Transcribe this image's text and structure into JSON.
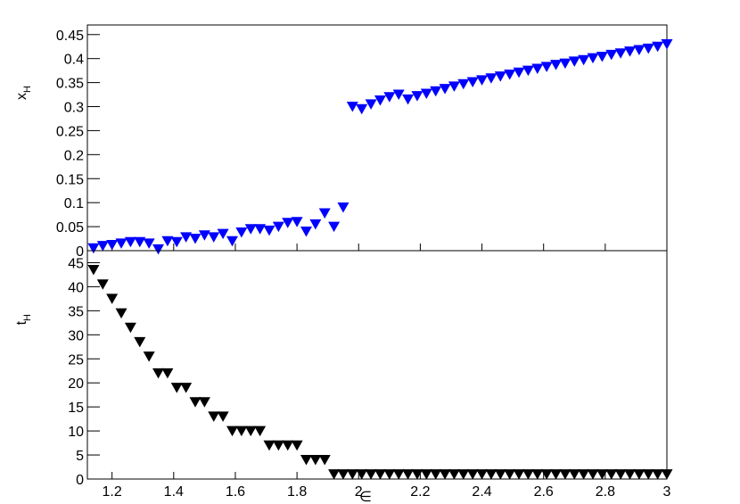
{
  "chart_data": [
    {
      "type": "scatter",
      "ylabel": [
        "x",
        "H"
      ],
      "color": "#0000ff",
      "x": [
        1.14,
        1.17,
        1.2,
        1.23,
        1.26,
        1.29,
        1.32,
        1.35,
        1.38,
        1.41,
        1.44,
        1.47,
        1.5,
        1.53,
        1.56,
        1.59,
        1.62,
        1.65,
        1.68,
        1.71,
        1.74,
        1.77,
        1.8,
        1.83,
        1.86,
        1.89,
        1.92,
        1.95,
        1.98,
        2.01,
        2.04,
        2.07,
        2.1,
        2.13,
        2.16,
        2.19,
        2.22,
        2.25,
        2.28,
        2.31,
        2.34,
        2.37,
        2.4,
        2.43,
        2.46,
        2.49,
        2.52,
        2.55,
        2.58,
        2.61,
        2.64,
        2.67,
        2.7,
        2.73,
        2.76,
        2.79,
        2.82,
        2.85,
        2.88,
        2.91,
        2.94,
        2.97,
        3.0
      ],
      "values": [
        0.005,
        0.01,
        0.012,
        0.015,
        0.018,
        0.018,
        0.015,
        0.003,
        0.02,
        0.018,
        0.028,
        0.025,
        0.032,
        0.028,
        0.035,
        0.02,
        0.038,
        0.045,
        0.045,
        0.042,
        0.05,
        0.058,
        0.06,
        0.04,
        0.055,
        0.078,
        0.05,
        0.09,
        0.3,
        0.295,
        0.305,
        0.313,
        0.32,
        0.325,
        0.315,
        0.322,
        0.327,
        0.332,
        0.337,
        0.342,
        0.347,
        0.351,
        0.355,
        0.359,
        0.363,
        0.367,
        0.371,
        0.375,
        0.379,
        0.383,
        0.387,
        0.39,
        0.394,
        0.397,
        0.401,
        0.404,
        0.408,
        0.411,
        0.415,
        0.418,
        0.421,
        0.425,
        0.43
      ],
      "ylim": [
        0,
        0.47
      ],
      "yticks": [
        0,
        0.05,
        0.1,
        0.15,
        0.2,
        0.25,
        0.3,
        0.35,
        0.4,
        0.45
      ]
    },
    {
      "type": "scatter",
      "ylabel": [
        "t",
        "H"
      ],
      "xlabel": "∈",
      "color": "#000000",
      "x": [
        1.14,
        1.17,
        1.2,
        1.23,
        1.26,
        1.29,
        1.32,
        1.35,
        1.38,
        1.41,
        1.44,
        1.47,
        1.5,
        1.53,
        1.56,
        1.59,
        1.62,
        1.65,
        1.68,
        1.71,
        1.74,
        1.77,
        1.8,
        1.83,
        1.86,
        1.89,
        1.92,
        1.95,
        1.98,
        2.01,
        2.04,
        2.07,
        2.1,
        2.13,
        2.16,
        2.19,
        2.22,
        2.25,
        2.28,
        2.31,
        2.34,
        2.37,
        2.4,
        2.43,
        2.46,
        2.49,
        2.52,
        2.55,
        2.58,
        2.61,
        2.64,
        2.67,
        2.7,
        2.73,
        2.76,
        2.79,
        2.82,
        2.85,
        2.88,
        2.91,
        2.94,
        2.97,
        3.0
      ],
      "values": [
        43.5,
        40.5,
        37.5,
        34.5,
        31.5,
        28.5,
        25.5,
        22,
        22,
        19,
        19,
        16,
        16,
        13,
        13,
        10,
        10,
        10,
        10,
        7,
        7,
        7,
        7,
        4,
        4,
        4,
        1,
        1,
        1,
        1,
        1,
        1,
        1,
        1,
        1,
        1,
        1,
        1,
        1,
        1,
        1,
        1,
        1,
        1,
        1,
        1,
        1,
        1,
        1,
        1,
        1,
        1,
        1,
        1,
        1,
        1,
        1,
        1,
        1,
        1,
        1,
        1,
        1
      ],
      "ylim": [
        0,
        47.5
      ],
      "yticks": [
        0,
        5,
        10,
        15,
        20,
        25,
        30,
        35,
        40,
        45
      ],
      "xlim": [
        1.12,
        3.0
      ],
      "xticks": [
        1.2,
        1.4,
        1.6,
        1.8,
        2,
        2.2,
        2.4,
        2.6,
        2.8,
        3
      ]
    }
  ]
}
